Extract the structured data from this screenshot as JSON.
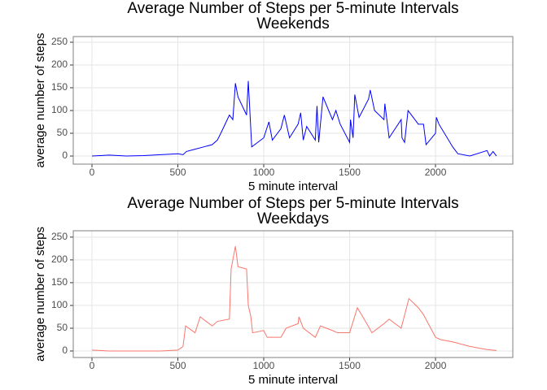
{
  "chart_data": [
    {
      "type": "line",
      "title": "Average Number of Steps per 5-minute Intervals",
      "subtitle": "Weekends",
      "x_label": "5 minute interval",
      "y_label": "average number of steps",
      "xlim": [
        -109,
        2450
      ],
      "ylim": [
        -17.8,
        262.5
      ],
      "xticks": [
        0,
        500,
        1000,
        1500,
        2000
      ],
      "yticks": [
        0,
        50,
        100,
        150,
        200,
        250
      ],
      "grid": true,
      "series": [
        {
          "name": "Weekends",
          "color": "#0000ff",
          "x": [
            0,
            100,
            200,
            300,
            400,
            500,
            530,
            550,
            600,
            650,
            700,
            730,
            750,
            800,
            820,
            835,
            850,
            900,
            910,
            930,
            1000,
            1030,
            1050,
            1100,
            1120,
            1150,
            1200,
            1215,
            1230,
            1250,
            1300,
            1310,
            1320,
            1345,
            1400,
            1420,
            1445,
            1500,
            1505,
            1520,
            1530,
            1555,
            1610,
            1620,
            1645,
            1700,
            1705,
            1730,
            1800,
            1805,
            1820,
            1840,
            1900,
            1930,
            1945,
            2000,
            2005,
            2020,
            2100,
            2130,
            2200,
            2300,
            2315,
            2335,
            2355
          ],
          "values": [
            0,
            2,
            0,
            1,
            3,
            5,
            3,
            10,
            15,
            20,
            25,
            35,
            50,
            90,
            80,
            160,
            130,
            90,
            165,
            20,
            40,
            75,
            35,
            60,
            90,
            40,
            70,
            95,
            35,
            65,
            35,
            110,
            30,
            130,
            80,
            100,
            70,
            30,
            80,
            40,
            135,
            85,
            125,
            145,
            100,
            80,
            115,
            40,
            80,
            40,
            30,
            100,
            70,
            70,
            25,
            50,
            85,
            70,
            20,
            5,
            0,
            12,
            0,
            10,
            0
          ]
        }
      ]
    },
    {
      "type": "line",
      "title": "Average Number of Steps per 5-minute Intervals",
      "subtitle": "Weekdays",
      "x_label": "5 minute interval",
      "y_label": "average number of steps",
      "xlim": [
        -109,
        2450
      ],
      "ylim": [
        -14.3,
        264
      ],
      "xticks": [
        0,
        500,
        1000,
        1500,
        2000
      ],
      "yticks": [
        0,
        50,
        100,
        150,
        200,
        250
      ],
      "grid": true,
      "series": [
        {
          "name": "Weekdays",
          "color": "#f8766d",
          "x": [
            0,
            100,
            200,
            300,
            400,
            500,
            530,
            545,
            600,
            630,
            700,
            730,
            800,
            810,
            835,
            850,
            900,
            910,
            925,
            935,
            1000,
            1020,
            1100,
            1130,
            1200,
            1205,
            1230,
            1300,
            1330,
            1400,
            1430,
            1500,
            1545,
            1600,
            1630,
            1700,
            1730,
            1800,
            1845,
            1900,
            1930,
            2000,
            2030,
            2100,
            2200,
            2300,
            2355
          ],
          "values": [
            2,
            0,
            0,
            0,
            0,
            2,
            10,
            55,
            40,
            75,
            55,
            65,
            70,
            180,
            230,
            185,
            180,
            100,
            75,
            40,
            45,
            30,
            30,
            50,
            60,
            75,
            50,
            30,
            55,
            45,
            40,
            40,
            95,
            60,
            40,
            60,
            70,
            50,
            115,
            95,
            80,
            30,
            25,
            20,
            10,
            3,
            1
          ]
        }
      ]
    }
  ]
}
